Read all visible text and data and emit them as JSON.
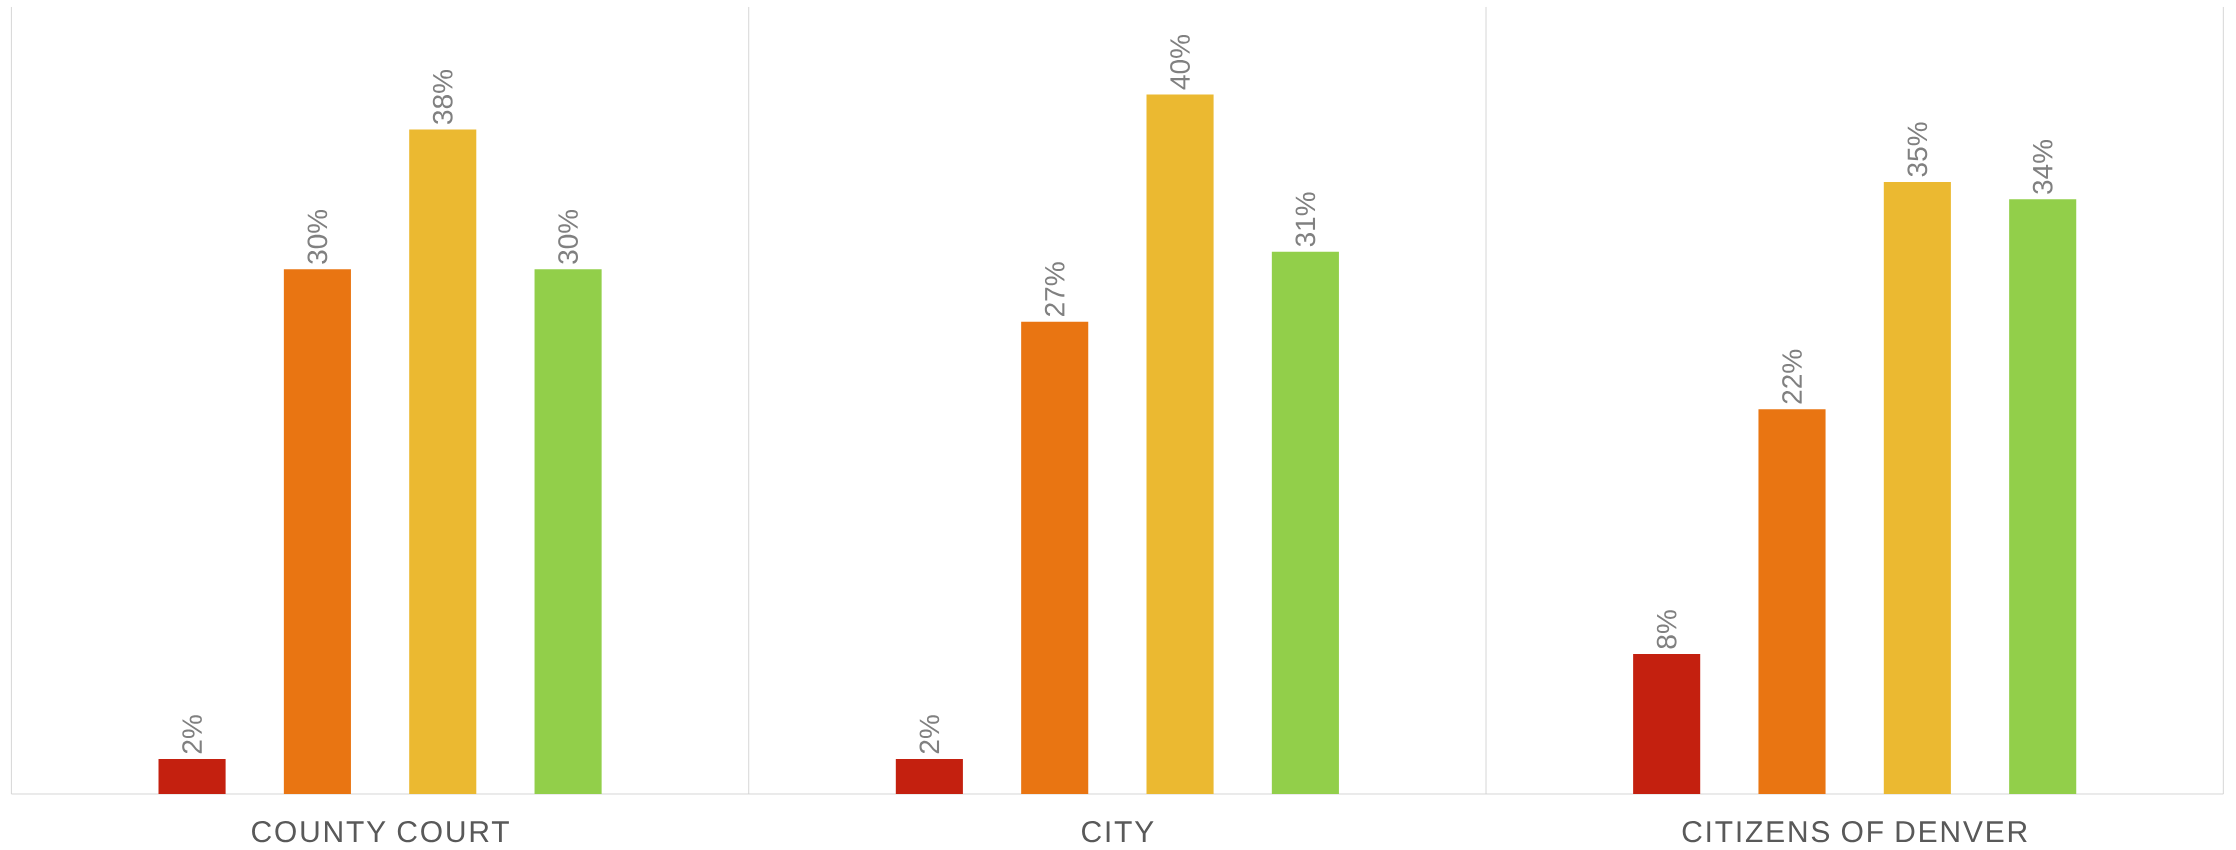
{
  "chart_data": {
    "type": "bar",
    "categories": [
      "COUNTY COURT",
      "CITY",
      "CITIZENS OF DENVER"
    ],
    "series": [
      {
        "color": "#c4200f",
        "values": [
          2,
          2,
          8
        ],
        "value_labels": [
          "2%",
          "2%",
          "8%"
        ]
      },
      {
        "color": "#e97512",
        "values": [
          30,
          27,
          22
        ],
        "value_labels": [
          "30%",
          "27%",
          "22%"
        ]
      },
      {
        "color": "#ebb931",
        "values": [
          38,
          40,
          35
        ],
        "value_labels": [
          "38%",
          "40%",
          "35%"
        ]
      },
      {
        "color": "#92cf4a",
        "values": [
          30,
          31,
          34
        ],
        "value_labels": [
          "30%",
          "31%",
          "34%"
        ]
      }
    ],
    "ylim": [
      0,
      45
    ]
  }
}
